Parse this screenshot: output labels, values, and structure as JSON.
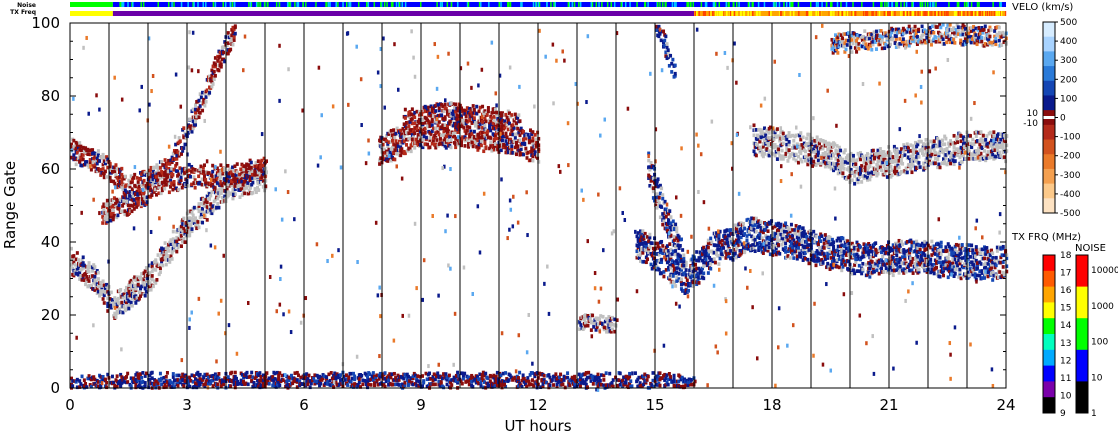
{
  "chart_data": {
    "type": "heatmap",
    "title": "",
    "xlabel": "UT hours",
    "ylabel": "Range Gate",
    "xlim": [
      0,
      24
    ],
    "ylim": [
      0,
      100
    ],
    "x_ticks": [
      0,
      3,
      6,
      9,
      12,
      15,
      18,
      21,
      24
    ],
    "x_tick_labels": [
      "0",
      "3",
      "6",
      "9",
      "12",
      "15",
      "18",
      "21",
      "24"
    ],
    "y_ticks": [
      0,
      20,
      40,
      60,
      80,
      100
    ],
    "y_tick_labels": [
      "0",
      "20",
      "40",
      "60",
      "80",
      "100"
    ],
    "hour_gridlines": [
      1,
      2,
      3,
      4,
      5,
      6,
      7,
      8,
      9,
      10,
      11,
      12,
      13,
      14,
      15,
      16,
      17,
      18,
      19,
      20,
      21,
      22,
      23
    ],
    "ground_scatter_color": "#c0c0c0",
    "scatter_regions": [
      {
        "kind": "band",
        "t": [
          0.0,
          0.6,
          1.1,
          2.0,
          3.0,
          4.0,
          5.0
        ],
        "g": [
          35,
          30,
          22,
          30,
          45,
          55,
          58
        ],
        "width": 6,
        "mix": "ground"
      },
      {
        "kind": "band",
        "t": [
          0.0,
          0.7,
          1.5,
          2.5,
          3.2,
          3.8,
          4.2
        ],
        "g": [
          65,
          62,
          55,
          60,
          75,
          90,
          98
        ],
        "width": 5,
        "mix": "red"
      },
      {
        "kind": "band",
        "t": [
          0.8,
          1.5,
          2.2,
          3.0,
          4.0,
          5.0
        ],
        "g": [
          48,
          50,
          56,
          58,
          58,
          60
        ],
        "width": 5,
        "mix": "red"
      },
      {
        "kind": "band",
        "t": [
          7.9,
          9.0,
          10.0,
          11.0,
          12.0
        ],
        "g": [
          65,
          70,
          70,
          68,
          66
        ],
        "width": 7,
        "mix": "red"
      },
      {
        "kind": "band",
        "t": [
          8.5,
          9.5,
          10.5,
          11.5
        ],
        "g": [
          74,
          76,
          75,
          73
        ],
        "width": 3,
        "mix": "red"
      },
      {
        "kind": "band",
        "t": [
          14.5,
          15.2,
          15.8,
          16.5,
          17.5,
          18.5,
          19.5,
          20.5,
          21.5,
          22.5,
          23.5,
          24.0
        ],
        "g": [
          40,
          35,
          30,
          38,
          42,
          40,
          37,
          35,
          36,
          35,
          34,
          35
        ],
        "width": 8,
        "mix": "blue"
      },
      {
        "kind": "band",
        "t": [
          17.5,
          18.5,
          19.5,
          20.0,
          21.0,
          22.0,
          23.0,
          24.0
        ],
        "g": [
          68,
          66,
          64,
          60,
          62,
          64,
          66,
          66
        ],
        "width": 7,
        "mix": "ground"
      },
      {
        "kind": "band",
        "t": [
          14.8,
          15.3,
          15.7
        ],
        "g": [
          60,
          45,
          35
        ],
        "width": 8,
        "mix": "blue"
      },
      {
        "kind": "band",
        "t": [
          0.0,
          2.0,
          5.0,
          7.0,
          9.0,
          11.0,
          13.0,
          15.0,
          16.0
        ],
        "g": [
          1,
          2,
          2,
          2,
          2,
          2,
          2,
          2,
          1
        ],
        "width": 3,
        "mix": "red-blue"
      },
      {
        "kind": "band",
        "t": [
          13.0,
          13.5,
          14.0
        ],
        "g": [
          18,
          18,
          17
        ],
        "width": 3,
        "mix": "ground"
      },
      {
        "kind": "band",
        "t": [
          15.0,
          15.3,
          15.5
        ],
        "g": [
          100,
          92,
          85
        ],
        "width": 4,
        "mix": "blue"
      },
      {
        "kind": "band",
        "t": [
          19.5,
          21.0,
          22.5,
          24.0
        ],
        "g": [
          94,
          96,
          97,
          96
        ],
        "width": 4,
        "mix": "mixed"
      }
    ],
    "velocity_colorbar": {
      "title": "VELO (km/s)",
      "ticks": [
        "500",
        "400",
        "300",
        "200",
        "100",
        "0",
        "-100",
        "-200",
        "-300",
        "-400",
        "-500"
      ],
      "extra_labels": [
        "10",
        "-10"
      ],
      "colors": [
        "#d6ecff",
        "#a8d3ff",
        "#5aa8f0",
        "#2a7ad8",
        "#1446b4",
        "#0a1a8c",
        "#8a0c0c",
        "#b42a1a",
        "#d2521e",
        "#ea7a2a",
        "#f4a050",
        "#fcc98a",
        "#fde2c2"
      ]
    },
    "txfreq_colorbar": {
      "title": "TX FRQ (MHz)",
      "ticks": [
        "18",
        "17",
        "16",
        "15",
        "14",
        "13",
        "12",
        "11",
        "10",
        "9"
      ],
      "colors": [
        "#ff0000",
        "#ff5a00",
        "#ffa500",
        "#ffff00",
        "#00ff00",
        "#00ffbe",
        "#00aaff",
        "#0000ff",
        "#7a00aa",
        "#000000"
      ]
    },
    "noise_colorbar": {
      "title": "NOISE",
      "ticks": [
        "10000",
        "1000",
        "100",
        "10",
        "1"
      ],
      "colors": [
        "#ff0000",
        "#ffff00",
        "#00ff00",
        "#0000ff",
        "#000000"
      ]
    },
    "status_strips": {
      "noise_label": "Noise",
      "txfreq_label": "TX Freq",
      "noise_segments": [
        {
          "from": 0.0,
          "to": 1.1,
          "color": "#00ff00"
        },
        {
          "from": 1.1,
          "to": 16.0,
          "color": "#0000ff"
        },
        {
          "from": 16.0,
          "to": 24.0,
          "color": "#0000ff"
        }
      ],
      "txfreq_segments": [
        {
          "from": 0.0,
          "to": 1.1,
          "color": "#ffff00"
        },
        {
          "from": 1.1,
          "to": 16.0,
          "color": "#6a00a8"
        },
        {
          "from": 16.0,
          "to": 24.0,
          "color": "#ffa500"
        }
      ]
    }
  }
}
